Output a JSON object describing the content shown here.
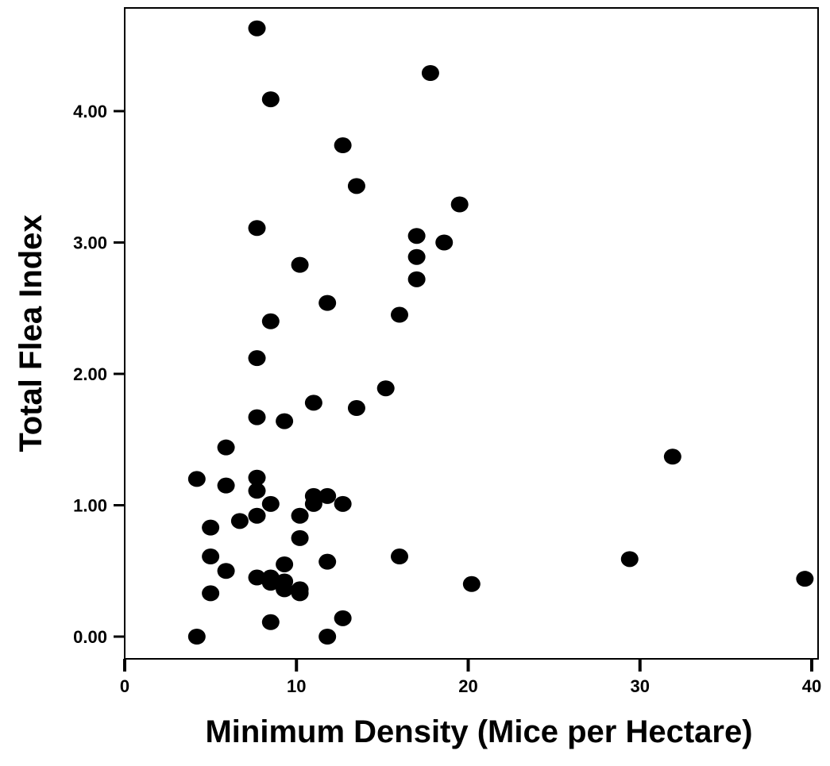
{
  "chart_data": {
    "type": "scatter",
    "title": "",
    "xlabel": "Minimum Density (Mice per Hectare)",
    "ylabel": "Total Flea Index",
    "xlim": [
      0,
      40
    ],
    "ylim": [
      0,
      4.7
    ],
    "x_ticks": [
      0,
      10,
      20,
      30,
      40
    ],
    "x_tick_labels": [
      "0",
      "10",
      "20",
      "30",
      "40"
    ],
    "y_ticks": [
      0,
      1,
      2,
      3,
      4
    ],
    "y_tick_labels": [
      "0.00",
      "1.00",
      "2.00",
      "3.00",
      "4.00"
    ],
    "grid": false,
    "legend": "none",
    "marker_color": "#000000",
    "points": [
      {
        "x": 7.7,
        "y": 4.63
      },
      {
        "x": 17.8,
        "y": 4.29
      },
      {
        "x": 8.5,
        "y": 4.09
      },
      {
        "x": 12.7,
        "y": 3.74
      },
      {
        "x": 13.5,
        "y": 3.43
      },
      {
        "x": 19.5,
        "y": 3.29
      },
      {
        "x": 7.7,
        "y": 3.11
      },
      {
        "x": 17.0,
        "y": 3.05
      },
      {
        "x": 18.6,
        "y": 3.0
      },
      {
        "x": 17.0,
        "y": 2.89
      },
      {
        "x": 10.2,
        "y": 2.83
      },
      {
        "x": 17.0,
        "y": 2.72
      },
      {
        "x": 11.8,
        "y": 2.54
      },
      {
        "x": 16.0,
        "y": 2.45
      },
      {
        "x": 8.5,
        "y": 2.4
      },
      {
        "x": 7.7,
        "y": 2.12
      },
      {
        "x": 15.2,
        "y": 1.89
      },
      {
        "x": 11.0,
        "y": 1.78
      },
      {
        "x": 13.5,
        "y": 1.74
      },
      {
        "x": 7.7,
        "y": 1.67
      },
      {
        "x": 9.3,
        "y": 1.64
      },
      {
        "x": 5.9,
        "y": 1.44
      },
      {
        "x": 31.9,
        "y": 1.37
      },
      {
        "x": 7.7,
        "y": 1.21
      },
      {
        "x": 4.2,
        "y": 1.2
      },
      {
        "x": 5.9,
        "y": 1.15
      },
      {
        "x": 7.7,
        "y": 1.11
      },
      {
        "x": 11.0,
        "y": 1.07
      },
      {
        "x": 11.8,
        "y": 1.07
      },
      {
        "x": 8.5,
        "y": 1.01
      },
      {
        "x": 11.0,
        "y": 1.01
      },
      {
        "x": 12.7,
        "y": 1.01
      },
      {
        "x": 7.7,
        "y": 0.92
      },
      {
        "x": 10.2,
        "y": 0.92
      },
      {
        "x": 6.7,
        "y": 0.88
      },
      {
        "x": 5.0,
        "y": 0.83
      },
      {
        "x": 10.2,
        "y": 0.75
      },
      {
        "x": 5.0,
        "y": 0.61
      },
      {
        "x": 16.0,
        "y": 0.61
      },
      {
        "x": 29.4,
        "y": 0.59
      },
      {
        "x": 11.8,
        "y": 0.57
      },
      {
        "x": 9.3,
        "y": 0.55
      },
      {
        "x": 5.9,
        "y": 0.5
      },
      {
        "x": 7.7,
        "y": 0.45
      },
      {
        "x": 8.5,
        "y": 0.45
      },
      {
        "x": 39.6,
        "y": 0.44
      },
      {
        "x": 8.5,
        "y": 0.41
      },
      {
        "x": 9.3,
        "y": 0.42
      },
      {
        "x": 20.2,
        "y": 0.4
      },
      {
        "x": 9.3,
        "y": 0.36
      },
      {
        "x": 10.2,
        "y": 0.36
      },
      {
        "x": 5.0,
        "y": 0.33
      },
      {
        "x": 10.2,
        "y": 0.33
      },
      {
        "x": 12.7,
        "y": 0.14
      },
      {
        "x": 8.5,
        "y": 0.11
      },
      {
        "x": 4.2,
        "y": 0.0
      },
      {
        "x": 11.8,
        "y": 0.0
      }
    ]
  }
}
